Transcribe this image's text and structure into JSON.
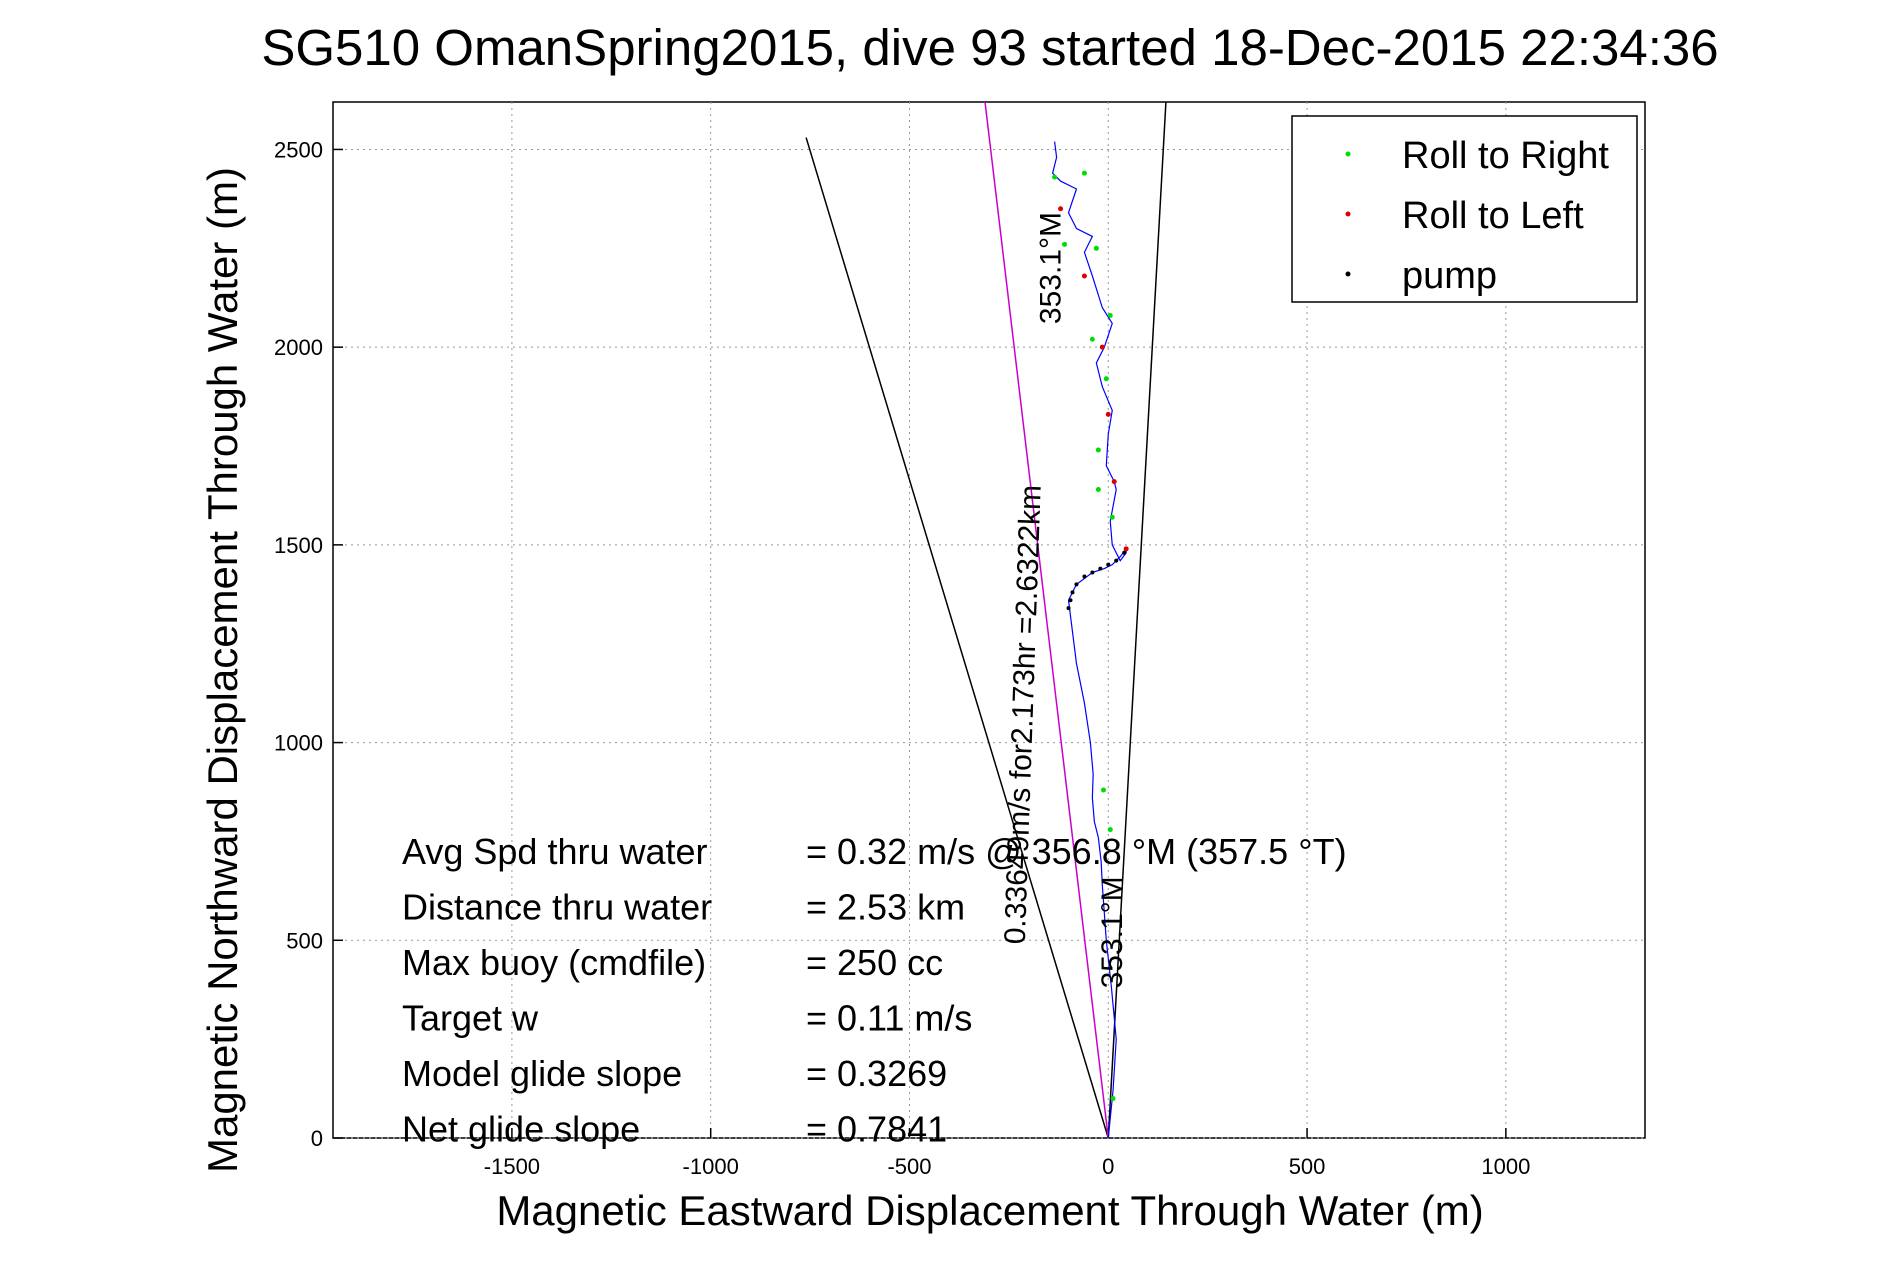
{
  "chart_data": {
    "type": "line",
    "title": "SG510 OmanSpring2015, dive 93 started 18-Dec-2015 22:34:36",
    "xlabel": "Magnetic Eastward Displacement Through Water (m)",
    "ylabel": "Magnetic Northward Displacement Through Water (m)",
    "xlim": [
      -1950,
      1350
    ],
    "ylim": [
      0,
      2620
    ],
    "xticks": [
      -1500,
      -1000,
      -500,
      0,
      500,
      1000
    ],
    "yticks": [
      0,
      500,
      1000,
      1500,
      2000,
      2500
    ],
    "grid": true,
    "legend_position": "top-right",
    "colors": {
      "track": "#0000ff",
      "roll_right": "#00dd00",
      "roll_left": "#dd0000",
      "pump": "#000000",
      "heading_line": "#cc00cc",
      "envelope": "#000000"
    },
    "legend": [
      {
        "key": "roll_right",
        "label": "Roll to Right"
      },
      {
        "key": "roll_left",
        "label": "Roll to Left"
      },
      {
        "key": "pump",
        "label": "pump"
      }
    ],
    "series": [
      {
        "key": "track",
        "x": [
          0,
          12,
          20,
          8,
          -5,
          -15,
          -18,
          -25,
          -35,
          -40,
          -38,
          -45,
          -60,
          -80,
          -90,
          -100,
          -80,
          -40,
          -10,
          10,
          30,
          45,
          45,
          30,
          10,
          5,
          20,
          15,
          -5,
          0,
          10,
          -15,
          -30,
          -10,
          10,
          -15,
          -40,
          -60,
          -40,
          -80,
          -100,
          -80,
          -120,
          -140,
          -130,
          -135
        ],
        "y": [
          0,
          120,
          250,
          380,
          500,
          640,
          700,
          760,
          800,
          860,
          920,
          1000,
          1100,
          1200,
          1280,
          1360,
          1400,
          1430,
          1440,
          1450,
          1470,
          1490,
          1480,
          1460,
          1500,
          1560,
          1640,
          1660,
          1700,
          1780,
          1840,
          1900,
          1960,
          2000,
          2060,
          2100,
          2180,
          2240,
          2280,
          2300,
          2340,
          2400,
          2420,
          2440,
          2480,
          2520
        ]
      }
    ],
    "roll_right_points": {
      "x": [
        12,
        5,
        -12,
        -40,
        -25,
        10,
        -25,
        -5,
        5,
        -30,
        -60,
        -110,
        -135
      ],
      "y": [
        100,
        780,
        880,
        2020,
        1640,
        1570,
        1740,
        1920,
        2080,
        2250,
        2440,
        2260,
        2430
      ]
    },
    "roll_left_points": {
      "x": [
        45,
        15,
        0,
        -15,
        -60,
        -120
      ],
      "y": [
        1490,
        1660,
        1830,
        2000,
        2180,
        2350
      ]
    },
    "pump_points": {
      "x": [
        -100,
        -95,
        -90,
        -80,
        -60,
        -40,
        -20,
        0,
        20,
        40
      ],
      "y": [
        1340,
        1360,
        1380,
        1400,
        1420,
        1430,
        1440,
        1450,
        1460,
        1480
      ]
    },
    "heading_line": {
      "x": [
        0,
        -310
      ],
      "y": [
        0,
        2620
      ]
    },
    "envelope_lines": [
      {
        "x": [
          0,
          -760
        ],
        "y": [
          0,
          2530
        ]
      },
      {
        "x": [
          0,
          145
        ],
        "y": [
          0,
          2620
        ]
      }
    ],
    "line_labels": [
      {
        "text": "353.1°M",
        "x": -120,
        "y": 2200,
        "angle": -90
      },
      {
        "text": "0.33649m/s for2.173hr =2.6322km",
        "x": -190,
        "y": 1070,
        "angle": -88
      },
      {
        "text": "353.1°M",
        "x": 35,
        "y": 520,
        "angle": -90
      }
    ],
    "annotations": [
      {
        "label": "Avg Spd thru water",
        "value": "=  0.32 m/s @ 356.8 °M (357.5 °T)"
      },
      {
        "label": "Distance thru water",
        "value": "=  2.53 km"
      },
      {
        "label": "Max buoy (cmdfile)",
        "value": "= 250 cc"
      },
      {
        "label": "Target w",
        "value": "= 0.11 m/s"
      },
      {
        "label": "Model glide slope",
        "value": "= 0.3269"
      },
      {
        "label": "Net glide slope",
        "value": "= 0.7841"
      }
    ]
  }
}
